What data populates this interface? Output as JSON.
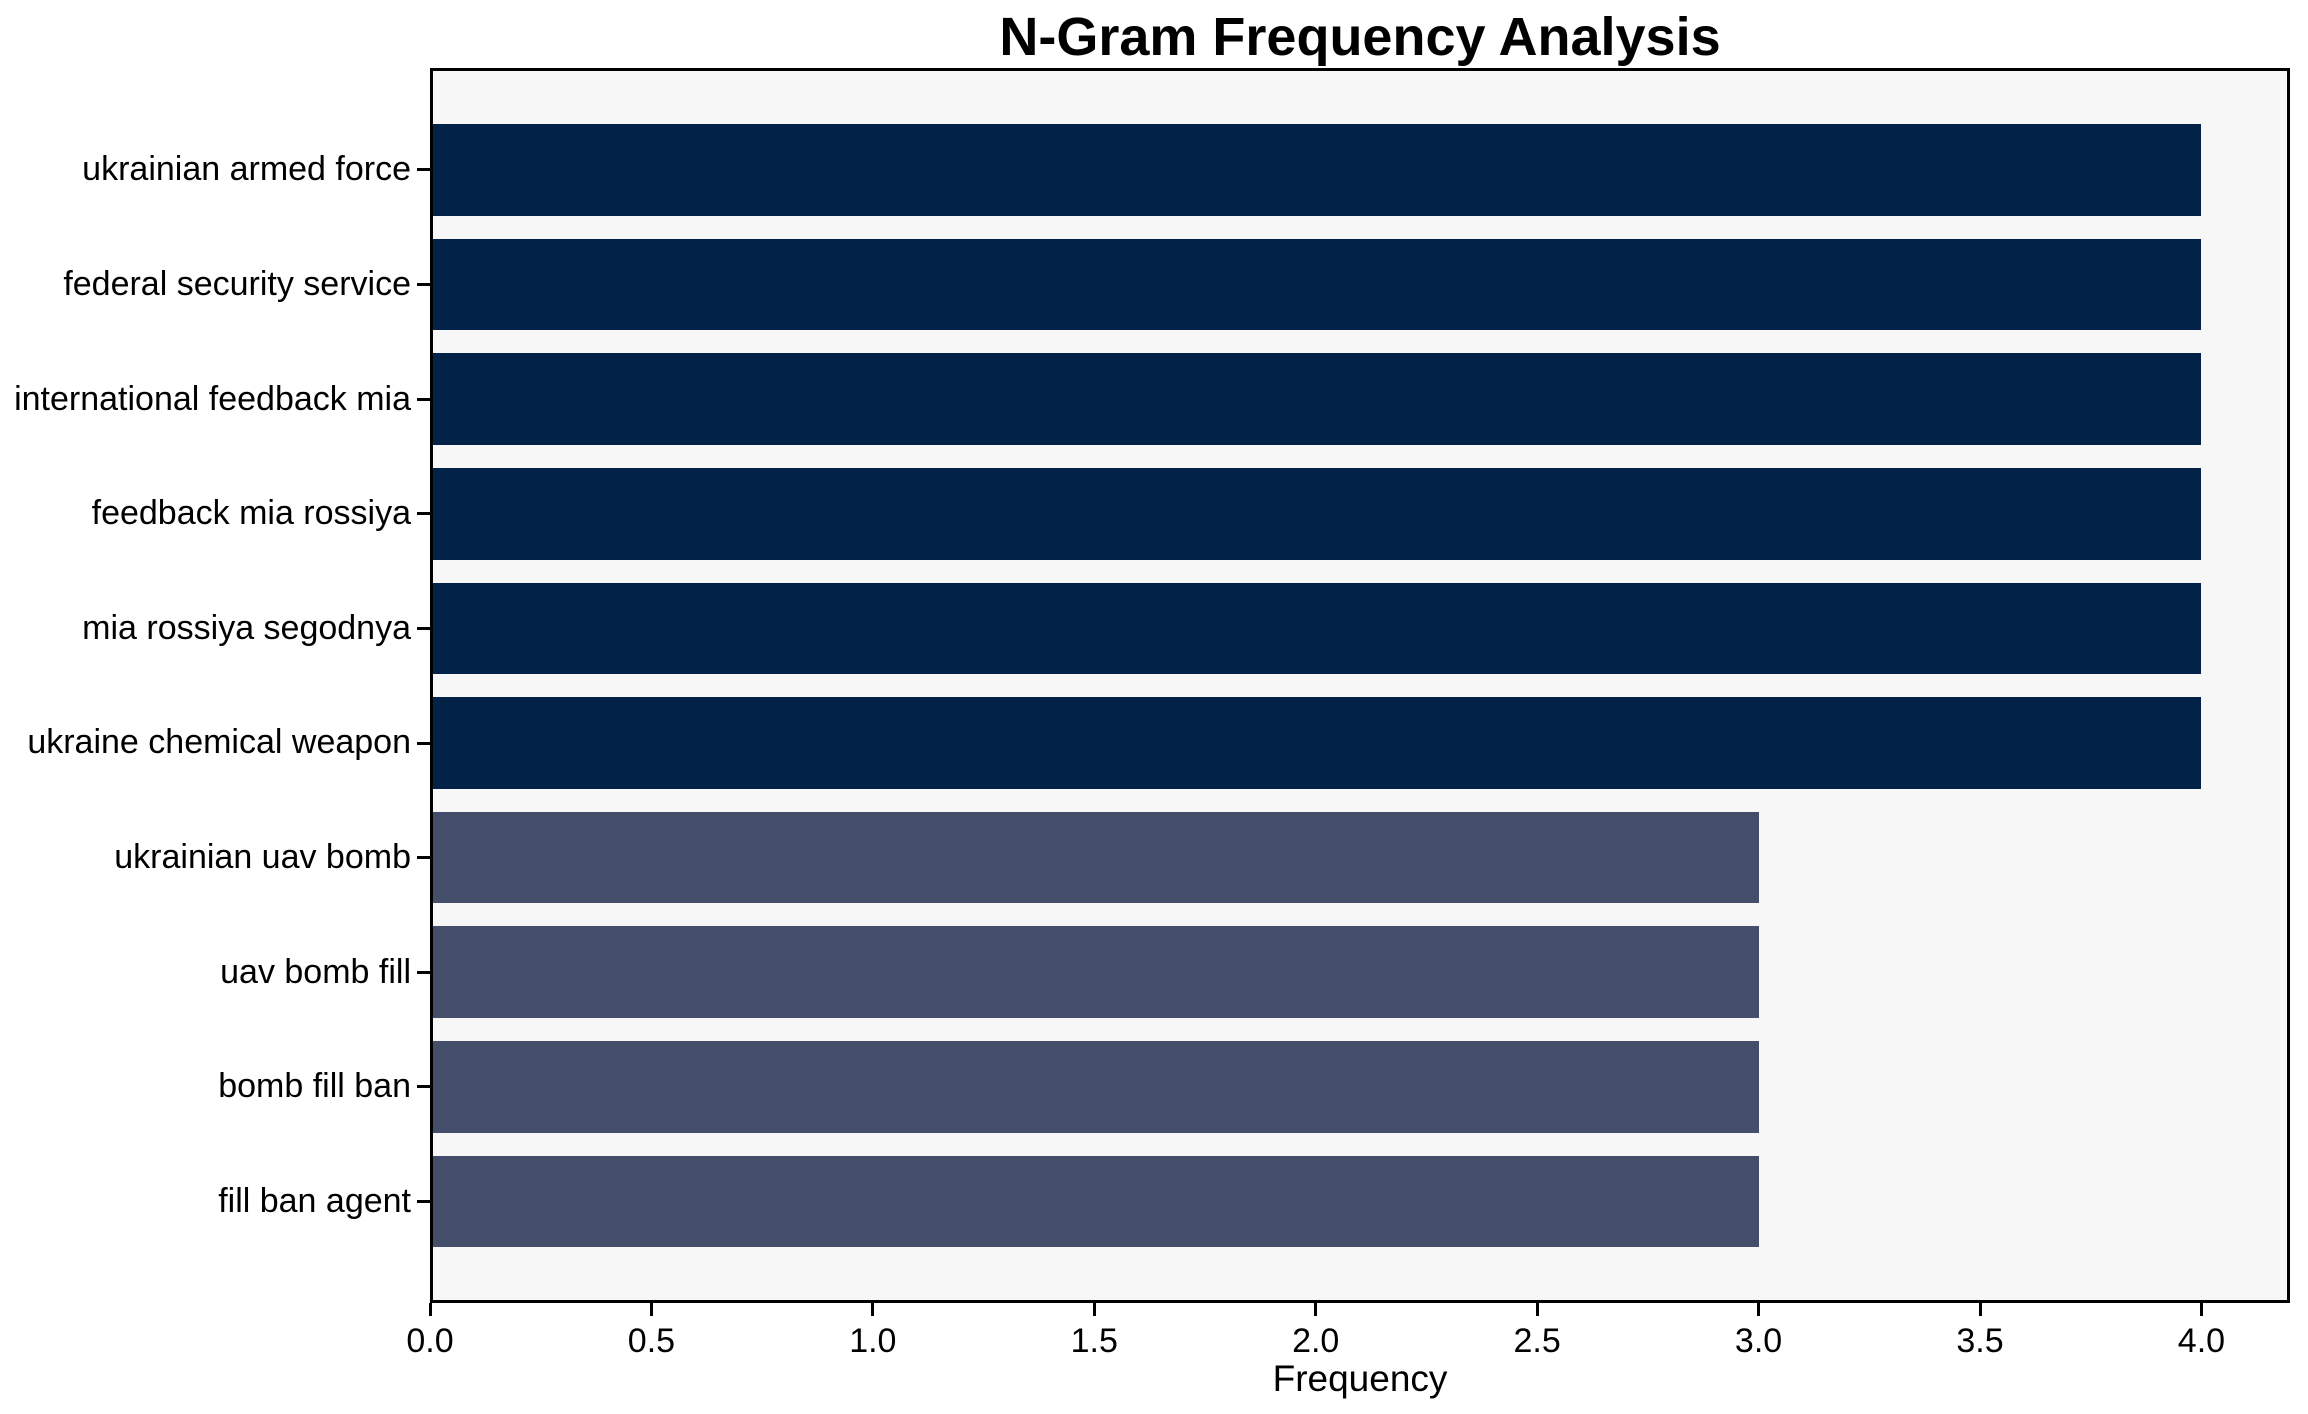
{
  "chart_data": {
    "type": "bar",
    "orientation": "horizontal",
    "title": "N-Gram Frequency Analysis",
    "xlabel": "Frequency",
    "ylabel": "",
    "categories": [
      "ukrainian armed force",
      "federal security service",
      "international feedback mia",
      "feedback mia rossiya",
      "mia rossiya segodnya",
      "ukraine chemical weapon",
      "ukrainian uav bomb",
      "uav bomb fill",
      "bomb fill ban",
      "fill ban agent"
    ],
    "values": [
      4,
      4,
      4,
      4,
      4,
      4,
      3,
      3,
      3,
      3
    ],
    "bar_colors": [
      "#032248",
      "#032248",
      "#032248",
      "#032248",
      "#032248",
      "#032248",
      "#444e6b",
      "#444e6b",
      "#444e6b",
      "#444e6b"
    ],
    "palette": {
      "high_frequency": "#032248",
      "low_frequency": "#444e6b"
    },
    "xlim": [
      0,
      4.2
    ],
    "xticks": [
      0,
      0.5,
      1,
      1.5,
      2,
      2.5,
      3,
      3.5,
      4
    ],
    "grid": false,
    "legend": null,
    "plot_background": "#f7f7f7",
    "figure_background": "#ffffff",
    "spine_color": "#000000",
    "text_color": "#000000"
  }
}
